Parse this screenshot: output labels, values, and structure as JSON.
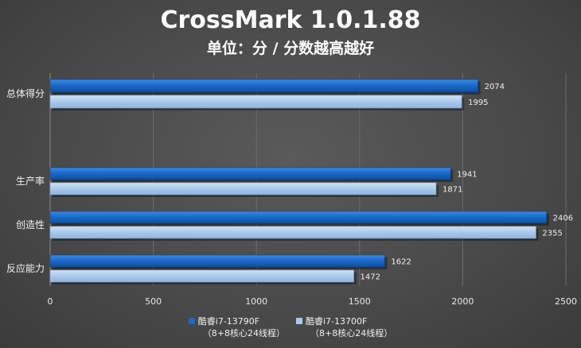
{
  "title": "CrossMark 1.0.1.88",
  "subtitle": "单位：分 / 分数越高越好",
  "chart_data": {
    "type": "bar",
    "orientation": "horizontal",
    "title": "CrossMark 1.0.1.88",
    "subtitle": "单位：分 / 分数越高越好",
    "categories": [
      "总体得分",
      "生产率",
      "创造性",
      "反应能力"
    ],
    "series": [
      {
        "name": "酷睿i7-13790F",
        "name_sub": "（8+8核心24线程）",
        "color": "#1a68c7",
        "values": [
          2074,
          1941,
          2406,
          1622
        ]
      },
      {
        "name": "酷睿i7-13700F",
        "name_sub": "（8+8核心24线程）",
        "color": "#a9c9ec",
        "values": [
          1995,
          1871,
          2355,
          1472
        ]
      }
    ],
    "xlim": [
      0,
      2500
    ],
    "xticks": [
      0,
      500,
      1000,
      1500,
      2000,
      2500
    ],
    "grid": true,
    "legend": "bottom"
  }
}
